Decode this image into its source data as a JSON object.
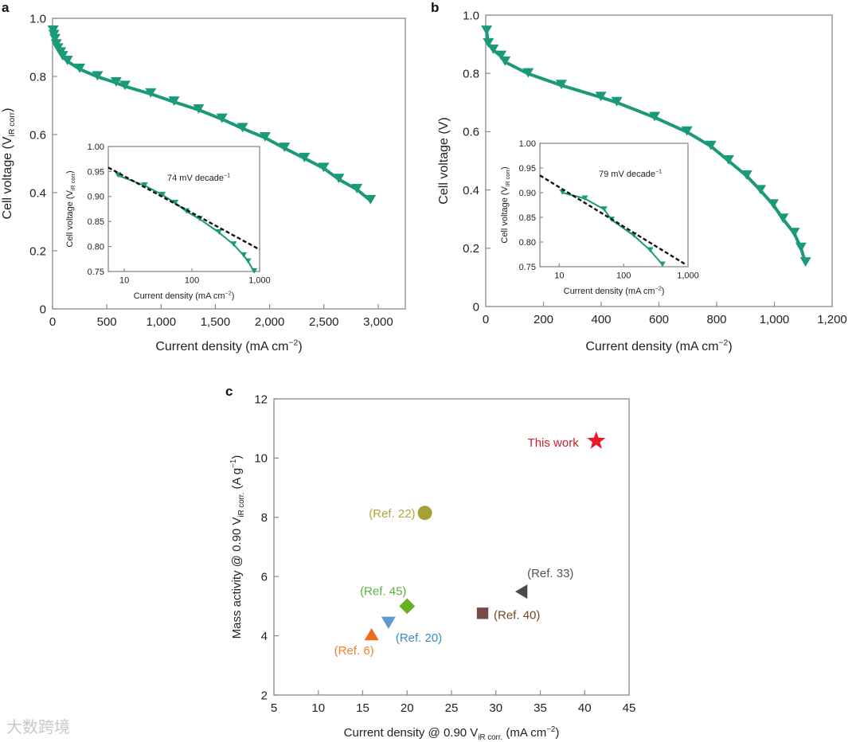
{
  "panel_labels": [
    "a",
    "b",
    "c"
  ],
  "watermark": "大数跨境",
  "colors": {
    "curve": "#1a9a78",
    "dash": "#111111",
    "frame": "#8a8a8a"
  },
  "chart_data": [
    {
      "id": "a",
      "type": "line",
      "title": "",
      "xlabel": [
        {
          "t": "Current density (mA cm"
        },
        {
          "t": "−2",
          "sup": true
        },
        {
          "t": ")"
        }
      ],
      "ylabel": [
        {
          "t": "Cell voltage (V"
        },
        {
          "t": "iR corr",
          "sub": true
        },
        {
          "t": ")"
        }
      ],
      "xlim": [
        0,
        3250
      ],
      "ylim": [
        0,
        1.0
      ],
      "xscale": "linear",
      "xticks": [
        0,
        500,
        1000,
        1500,
        2000,
        2500,
        3000
      ],
      "xtick_labels": [
        "0",
        "500",
        "1,000",
        "1,500",
        "2,000",
        "2,500",
        "3,000"
      ],
      "yticks": [
        0,
        0.2,
        0.4,
        0.6,
        0.8,
        1.0
      ],
      "ytick_labels": [
        "0",
        "0.2",
        "0.4",
        "0.6",
        "0.8",
        "1.0"
      ],
      "series": [
        {
          "name": "polarization",
          "marker": "triangle-down",
          "x": [
            5,
            12,
            22,
            34,
            49,
            74,
            93,
            137,
            250,
            414,
            586,
            667,
            904,
            1120,
            1346,
            1561,
            1750,
            1958,
            2137,
            2321,
            2498,
            2637,
            2804,
            2929
          ],
          "y": [
            0.956,
            0.941,
            0.927,
            0.909,
            0.895,
            0.881,
            0.868,
            0.852,
            0.825,
            0.799,
            0.778,
            0.766,
            0.74,
            0.712,
            0.685,
            0.653,
            0.621,
            0.589,
            0.553,
            0.518,
            0.484,
            0.446,
            0.411,
            0.373
          ]
        }
      ]
    },
    {
      "id": "a_inset",
      "type": "line",
      "title": "",
      "xlabel": [
        {
          "t": "Current density (mA cm"
        },
        {
          "t": "−2",
          "sup": true
        },
        {
          "t": ")"
        }
      ],
      "ylabel": [
        {
          "t": "Cell voltage (V"
        },
        {
          "t": "iR corr",
          "sub": true
        },
        {
          "t": ")"
        }
      ],
      "xlim": [
        5.8,
        1000
      ],
      "ylim": [
        0.75,
        1.0
      ],
      "xscale": "log",
      "xticks": [
        10,
        100,
        1000
      ],
      "xtick_labels": [
        "10",
        "100",
        "1,000"
      ],
      "yticks": [
        0.75,
        0.8,
        0.85,
        0.9,
        0.95,
        1.0
      ],
      "ytick_labels": [
        "0.75",
        "0.80",
        "0.85",
        "0.90",
        "0.95",
        "1.00"
      ],
      "annotation": [
        {
          "t": "74 mV decade"
        },
        {
          "t": "−1",
          "sup": true
        }
      ],
      "series": [
        {
          "name": "data",
          "marker": "triangle-down",
          "x": [
            8.1,
            20,
            36.7,
            56.6,
            83,
            130,
            251,
            413,
            582,
            676,
            830
          ],
          "y": [
            0.942,
            0.922,
            0.903,
            0.887,
            0.87,
            0.855,
            0.828,
            0.804,
            0.782,
            0.77,
            0.75
          ]
        },
        {
          "name": "Tafel fit",
          "style": "dashed",
          "x": [
            5.8,
            1000
          ],
          "y": [
            0.958,
            0.794
          ]
        }
      ]
    },
    {
      "id": "b",
      "type": "line",
      "title": "",
      "xlabel": [
        {
          "t": "Current density (mA cm"
        },
        {
          "t": "−2",
          "sup": true
        },
        {
          "t": ")"
        }
      ],
      "ylabel": [
        {
          "t": "Cell voltage (V)"
        }
      ],
      "xlim": [
        0,
        1200
      ],
      "ylim": [
        0,
        1.0
      ],
      "xscale": "linear",
      "xticks": [
        0,
        200,
        400,
        600,
        800,
        1000,
        1200
      ],
      "xtick_labels": [
        "0",
        "200",
        "400",
        "600",
        "800",
        "1,000",
        "1,200"
      ],
      "yticks": [
        0,
        0.2,
        0.4,
        0.6,
        0.8,
        1.0
      ],
      "ytick_labels": [
        "0",
        "0.2",
        "0.4",
        "0.6",
        "0.8",
        "1.0"
      ],
      "series": [
        {
          "name": "polarization",
          "marker": "triangle-down",
          "x": [
            3,
            9,
            26,
            53,
            67,
            147,
            262,
            399,
            454,
            585,
            697,
            780,
            841,
            904,
            952,
            996,
            1030,
            1069,
            1092,
            1108
          ],
          "y": [
            0.945,
            0.902,
            0.88,
            0.859,
            0.839,
            0.799,
            0.759,
            0.718,
            0.7,
            0.649,
            0.599,
            0.55,
            0.5,
            0.448,
            0.398,
            0.349,
            0.3,
            0.251,
            0.2,
            0.15
          ]
        }
      ]
    },
    {
      "id": "b_inset",
      "type": "line",
      "title": "",
      "xlabel": [
        {
          "t": "Current density (mA cm"
        },
        {
          "t": "−2",
          "sup": true
        },
        {
          "t": ")"
        }
      ],
      "ylabel": [
        {
          "t": "Cell voltage (V"
        },
        {
          "t": "iR corr",
          "sub": true
        },
        {
          "t": ")"
        }
      ],
      "xlim": [
        5,
        1000
      ],
      "ylim": [
        0.75,
        1.0
      ],
      "xscale": "log",
      "xticks": [
        10,
        100,
        1000
      ],
      "xtick_labels": [
        "10",
        "100",
        "1,000"
      ],
      "yticks": [
        0.75,
        0.8,
        0.85,
        0.9,
        0.95,
        1.0
      ],
      "ytick_labels": [
        "0.75",
        "0.80",
        "0.85",
        "0.90",
        "0.95",
        "1.00"
      ],
      "annotation": [
        {
          "t": "79 mV decade"
        },
        {
          "t": "−1",
          "sup": true
        }
      ],
      "series": [
        {
          "name": "data",
          "marker": "triangle-down",
          "x": [
            11.2,
            25,
            50,
            65,
            144,
            259,
            401
          ],
          "y": [
            0.9,
            0.888,
            0.866,
            0.845,
            0.813,
            0.783,
            0.754
          ]
        },
        {
          "name": "Tafel fit",
          "style": "dashed",
          "x": [
            5,
            935
          ],
          "y": [
            0.935,
            0.754
          ]
        }
      ]
    },
    {
      "id": "c",
      "type": "scatter",
      "title": "",
      "xlabel": [
        {
          "t": "Current density @ 0.90 V"
        },
        {
          "t": "iR corr.",
          "sub": true
        },
        {
          "t": " (mA cm"
        },
        {
          "t": "−2",
          "sup": true
        },
        {
          "t": ")"
        }
      ],
      "ylabel": [
        {
          "t": "Mass activity @ 0.90 V"
        },
        {
          "t": "iR corr.",
          "sub": true
        },
        {
          "t": " (A g"
        },
        {
          "t": "−1",
          "sup": true
        },
        {
          "t": ")"
        }
      ],
      "xlim": [
        5,
        45
      ],
      "ylim": [
        2,
        12
      ],
      "xscale": "linear",
      "xticks": [
        5,
        10,
        15,
        20,
        25,
        30,
        35,
        40,
        45
      ],
      "xtick_labels": [
        "5",
        "10",
        "15",
        "20",
        "25",
        "30",
        "35",
        "40",
        "45"
      ],
      "yticks": [
        2,
        4,
        6,
        8,
        10,
        12
      ],
      "ytick_labels": [
        "2",
        "4",
        "6",
        "8",
        "10",
        "12"
      ],
      "points": [
        {
          "label": "This work",
          "x": 41.3,
          "y": 10.58,
          "marker": "star",
          "color": "#e8192c",
          "label_color": "#c8202e"
        },
        {
          "label": "(Ref. 22)",
          "x": 22.0,
          "y": 8.15,
          "marker": "circle",
          "color": "#a8a032",
          "label_color": "#b0a640"
        },
        {
          "label": "(Ref. 33)",
          "x": 32.9,
          "y": 5.49,
          "marker": "triangle-left",
          "color": "#4a4a4a",
          "label_color": "#555555"
        },
        {
          "label": "(Ref. 45)",
          "x": 20.0,
          "y": 5.0,
          "marker": "diamond",
          "color": "#6ab023",
          "label_color": "#5cb048"
        },
        {
          "label": "(Ref. 40)",
          "x": 28.5,
          "y": 4.76,
          "marker": "square",
          "color": "#7a4a48",
          "label_color": "#6e4a22"
        },
        {
          "label": "(Ref. 20)",
          "x": 17.9,
          "y": 4.45,
          "marker": "triangle-down",
          "color": "#5b9bd0",
          "label_color": "#3a8ac4"
        },
        {
          "label": "(Ref. 6)",
          "x": 16.0,
          "y": 4.04,
          "marker": "triangle-up",
          "color": "#f26b1d",
          "label_color": "#f08030"
        }
      ]
    }
  ]
}
